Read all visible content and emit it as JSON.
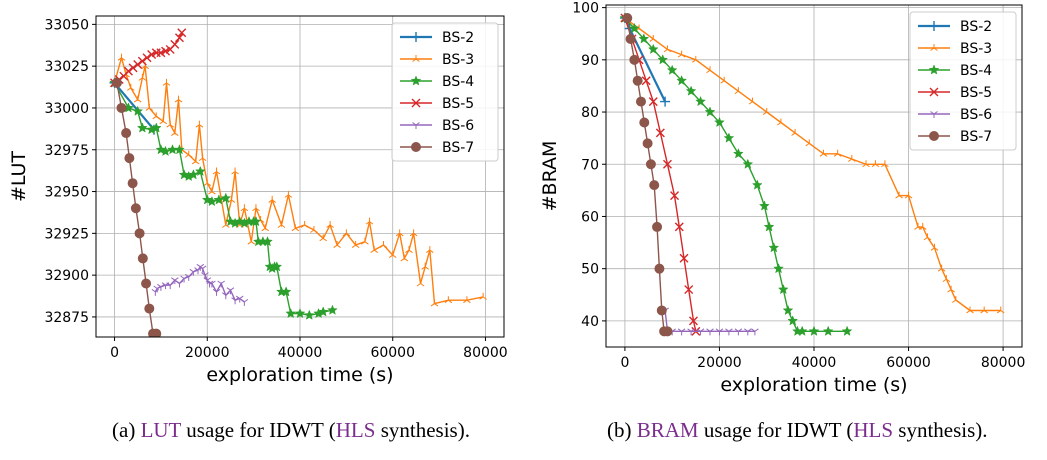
{
  "captions": {
    "a": {
      "prefix": "(a) ",
      "term1": "LUT",
      "mid": " usage for IDWT (",
      "term2": "HLS",
      "suffix": " synthesis)."
    },
    "b": {
      "prefix": "(b) ",
      "term1": "BRAM",
      "mid": " usage for IDWT (",
      "term2": "HLS",
      "suffix": " synthesis)."
    }
  },
  "colors": {
    "BS-2": "#1f77b4",
    "BS-3": "#ff7f0e",
    "BS-4": "#2ca02c",
    "BS-5": "#d62728",
    "BS-6": "#9467bd",
    "BS-7": "#8c564b",
    "caption_highlight": "#7b2d8e"
  },
  "chart_data": [
    {
      "type": "line",
      "xlabel": "exploration time (s)",
      "ylabel": "#LUT",
      "xlim": [
        -4000,
        84000
      ],
      "ylim": [
        32863,
        33055
      ],
      "xticks": [
        0,
        20000,
        40000,
        60000,
        80000
      ],
      "yticks": [
        32875,
        32900,
        32925,
        32950,
        32975,
        33000,
        33025,
        33050
      ],
      "grid": true,
      "legend": "top-right",
      "series": [
        {
          "name": "BS-2",
          "marker": "plus",
          "x": [
            0,
            8500
          ],
          "y": [
            33015,
            32987
          ]
        },
        {
          "name": "BS-3",
          "marker": "tri_up",
          "x": [
            0,
            1500,
            2500,
            3500,
            5000,
            6000,
            6600,
            7500,
            9000,
            10500,
            11200,
            12000,
            13000,
            13800,
            14500,
            16000,
            17500,
            18300,
            19000,
            20000,
            21000,
            22000,
            24000,
            25200,
            26000,
            27000,
            28000,
            29500,
            30500,
            31500,
            32500,
            34000,
            36000,
            37500,
            39000,
            41000,
            43000,
            45000,
            46500,
            48000,
            50000,
            52000,
            54000,
            55000,
            56000,
            58000,
            60000,
            61500,
            62500,
            63500,
            64500,
            66000,
            67000,
            68000,
            69000,
            72000,
            76000,
            79500
          ],
          "y": [
            33015,
            33030,
            33020,
            33012,
            33005,
            33018,
            33025,
            33000,
            32995,
            32992,
            33015,
            32990,
            32985,
            33005,
            32975,
            32972,
            32968,
            32990,
            32970,
            32955,
            32950,
            32962,
            32930,
            32945,
            32962,
            32930,
            32940,
            32920,
            32940,
            32933,
            32928,
            32945,
            32930,
            32948,
            32928,
            32930,
            32927,
            32922,
            32930,
            32918,
            32925,
            32918,
            32920,
            32932,
            32915,
            32918,
            32912,
            32925,
            32910,
            32915,
            32925,
            32895,
            32905,
            32915,
            32883,
            32885,
            32885,
            32887
          ]
        },
        {
          "name": "BS-4",
          "marker": "star",
          "x": [
            0,
            3000,
            5000,
            6000,
            8000,
            9000,
            10000,
            11000,
            12500,
            14000,
            15000,
            16000,
            17000,
            18500,
            20000,
            21000,
            22500,
            24000,
            25000,
            26000,
            27000,
            28000,
            29000,
            30000,
            30500,
            31000,
            32000,
            33000,
            33500,
            34000,
            34500,
            35000,
            36000,
            37000,
            38000,
            40000,
            42000,
            44000,
            45000,
            47000
          ],
          "y": [
            33015,
            33000,
            32998,
            32988,
            32987,
            32988,
            32975,
            32974,
            32975,
            32975,
            32960,
            32959,
            32960,
            32962,
            32945,
            32944,
            32945,
            32946,
            32932,
            32931,
            32932,
            32931,
            32932,
            32932,
            32932,
            32920,
            32920,
            32920,
            32905,
            32904,
            32905,
            32905,
            32890,
            32890,
            32877,
            32877,
            32876,
            32877,
            32878,
            32879
          ]
        },
        {
          "name": "BS-5",
          "marker": "x",
          "x": [
            0,
            1000,
            2000,
            3000,
            4000,
            5000,
            6000,
            7000,
            8000,
            9000,
            10000,
            11000,
            12000,
            13000,
            14000,
            14500
          ],
          "y": [
            33015,
            33017,
            33019,
            33022,
            33024,
            33026,
            33028,
            33030,
            33032,
            33033,
            33033,
            33034,
            33035,
            33038,
            33042,
            33045
          ]
        },
        {
          "name": "BS-6",
          "marker": "tri_down",
          "x": [
            8800,
            9200,
            10000,
            11000,
            12000,
            13000,
            14000,
            15000,
            16000,
            17000,
            18000,
            18500,
            19000,
            19500,
            20000,
            20500,
            21000,
            22000,
            23000,
            24000,
            25000,
            26000,
            27000,
            28000
          ],
          "y": [
            32890,
            32892,
            32893,
            32894,
            32894,
            32897,
            32895,
            32898,
            32899,
            32902,
            32903,
            32905,
            32904,
            32900,
            32897,
            32895,
            32895,
            32890,
            32895,
            32888,
            32891,
            32885,
            32886,
            32884
          ]
        },
        {
          "name": "BS-7",
          "marker": "circle",
          "x": [
            500,
            1500,
            2500,
            3200,
            3900,
            4600,
            5400,
            6100,
            6800,
            7500,
            8300,
            9000
          ],
          "y": [
            33015,
            33000,
            32985,
            32970,
            32955,
            32940,
            32925,
            32910,
            32895,
            32880,
            32865,
            32865
          ]
        }
      ]
    },
    {
      "type": "line",
      "xlabel": "exploration time (s)",
      "ylabel": "#BRAM",
      "xlim": [
        -4000,
        84000
      ],
      "ylim": [
        35,
        100.5
      ],
      "xticks": [
        0,
        20000,
        40000,
        60000,
        80000
      ],
      "yticks": [
        40,
        50,
        60,
        70,
        80,
        90,
        100
      ],
      "grid": true,
      "legend": "top-right",
      "series": [
        {
          "name": "BS-2",
          "marker": "plus",
          "x": [
            0,
            1000,
            8500
          ],
          "y": [
            98,
            96,
            82
          ]
        },
        {
          "name": "BS-3",
          "marker": "tri_up",
          "x": [
            0,
            3000,
            6000,
            9000,
            12000,
            15000,
            18000,
            21000,
            24000,
            27000,
            30000,
            33000,
            36000,
            39000,
            42000,
            45000,
            48000,
            51000,
            53000,
            55000,
            58000,
            60000,
            62000,
            63000,
            64000,
            65500,
            67000,
            68000,
            69000,
            70000,
            73000,
            76000,
            79500
          ],
          "y": [
            98,
            96,
            94,
            92,
            91,
            90,
            88,
            86,
            84,
            82,
            80,
            78,
            76,
            74,
            72,
            72,
            71,
            70,
            70,
            70,
            64,
            64,
            58,
            58,
            56,
            54,
            50,
            48,
            46,
            44,
            42,
            42,
            42
          ]
        },
        {
          "name": "BS-4",
          "marker": "star",
          "x": [
            0,
            2000,
            4000,
            6000,
            8000,
            10000,
            12000,
            14000,
            16000,
            18000,
            20000,
            22000,
            24000,
            26000,
            28000,
            29500,
            30500,
            31500,
            32500,
            33500,
            34500,
            35500,
            36500,
            37500,
            40000,
            43000,
            47000
          ],
          "y": [
            98,
            96,
            94,
            92,
            90,
            88,
            86,
            84,
            82,
            80,
            78,
            75,
            72,
            70,
            66,
            62,
            58,
            54,
            50,
            46,
            42,
            40,
            38,
            38,
            38,
            38,
            38
          ]
        },
        {
          "name": "BS-5",
          "marker": "x",
          "x": [
            0,
            1500,
            3000,
            4500,
            6000,
            7500,
            9000,
            10500,
            11500,
            12500,
            13500,
            14500,
            15000
          ],
          "y": [
            98,
            94,
            90,
            86,
            82,
            76,
            70,
            64,
            58,
            52,
            46,
            40,
            38
          ]
        },
        {
          "name": "BS-6",
          "marker": "tri_down",
          "x": [
            8500,
            9000,
            10000,
            12000,
            14000,
            16000,
            18000,
            20000,
            22000,
            24000,
            26000,
            27500
          ],
          "y": [
            42,
            38,
            38,
            38,
            38,
            38,
            38,
            38,
            38,
            38,
            38,
            38
          ]
        },
        {
          "name": "BS-7",
          "marker": "circle",
          "x": [
            500,
            1200,
            2000,
            2700,
            3400,
            4100,
            4800,
            5500,
            6200,
            6800,
            7300,
            7800,
            8300,
            9000
          ],
          "y": [
            98,
            94,
            90,
            86,
            82,
            78,
            74,
            70,
            66,
            58,
            50,
            42,
            38,
            38
          ]
        }
      ]
    }
  ]
}
